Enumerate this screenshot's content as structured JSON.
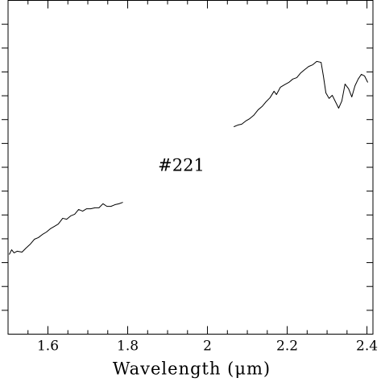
{
  "chart_data": {
    "type": "line",
    "annotation": "#221",
    "xlabel": "Wavelength (μm)",
    "color": "#000000",
    "xlim": [
      1.5,
      2.415
    ],
    "xticks": [
      1.6,
      1.8,
      2,
      2.2,
      2.4
    ],
    "xminorticks": [
      1.55,
      1.65,
      1.7,
      1.75,
      1.85,
      1.9,
      1.95,
      2.05,
      2.1,
      2.15,
      2.25,
      2.3,
      2.35
    ],
    "ylim": [
      0,
      14
    ],
    "yticks": [
      1,
      2,
      3,
      4,
      5,
      6,
      7,
      8,
      9,
      10,
      11,
      12,
      13
    ],
    "x": [
      1.503,
      1.509,
      1.515,
      1.523,
      1.535,
      1.545,
      1.556,
      1.566,
      1.576,
      1.586,
      1.596,
      1.606,
      1.616,
      1.626,
      1.637,
      1.647,
      1.657,
      1.667,
      1.677,
      1.687,
      1.697,
      1.707,
      1.718,
      1.728,
      1.738,
      1.748,
      1.758,
      1.768,
      1.778,
      1.788,
      1.93,
      2.066,
      2.076,
      2.086,
      2.096,
      2.106,
      2.116,
      2.127,
      2.137,
      2.147,
      2.157,
      2.167,
      2.173,
      2.183,
      2.193,
      2.204,
      2.214,
      2.224,
      2.234,
      2.244,
      2.254,
      2.264,
      2.274,
      2.285,
      2.291,
      2.297,
      2.305,
      2.313,
      2.321,
      2.329,
      2.337,
      2.345,
      2.354,
      2.362,
      2.37,
      2.378,
      2.386,
      2.394,
      2.402
    ],
    "values": [
      3.34,
      3.54,
      3.41,
      3.48,
      3.44,
      3.61,
      3.78,
      3.98,
      4.05,
      4.18,
      4.28,
      4.42,
      4.52,
      4.62,
      4.86,
      4.82,
      4.96,
      5.03,
      5.23,
      5.16,
      5.26,
      5.26,
      5.3,
      5.3,
      5.47,
      5.36,
      5.36,
      5.43,
      5.47,
      5.53,
      null,
      8.7,
      8.77,
      8.81,
      8.94,
      9.04,
      9.18,
      9.41,
      9.55,
      9.75,
      9.92,
      10.19,
      10.05,
      10.36,
      10.46,
      10.56,
      10.7,
      10.76,
      10.96,
      11.1,
      11.23,
      11.3,
      11.44,
      11.4,
      10.8,
      10.12,
      9.89,
      10.02,
      9.75,
      9.48,
      9.78,
      10.49,
      10.29,
      9.95,
      10.42,
      10.7,
      10.9,
      10.83,
      10.56
    ]
  }
}
